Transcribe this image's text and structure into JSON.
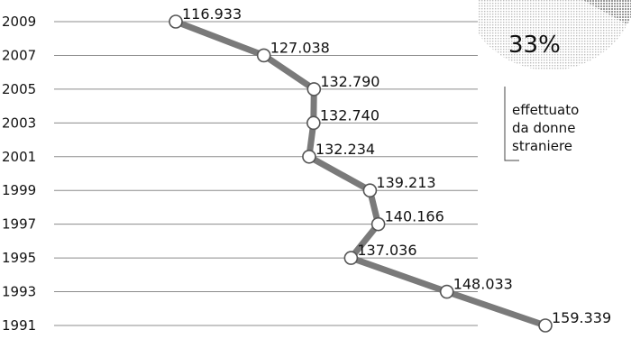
{
  "chart_data": {
    "type": "line",
    "orientation": "horizontal",
    "categories": [
      "1991",
      "1993",
      "1995",
      "1997",
      "1999",
      "2001",
      "2003",
      "2005",
      "2007",
      "2009"
    ],
    "values": [
      159339,
      148033,
      137036,
      140166,
      139213,
      132234,
      132740,
      132790,
      127038,
      116933
    ],
    "value_labels": [
      "159.339",
      "148.033",
      "137.036",
      "140.166",
      "139.213",
      "132.234",
      "132.740",
      "132.790",
      "127.038",
      "116.933"
    ],
    "xlim": [
      116933,
      159339
    ],
    "grid": true,
    "line_color": "#7a7a7a",
    "marker_fill": "#ffffff"
  },
  "inset": {
    "percent": "33%",
    "note_lines": [
      "effettuato",
      "da donne",
      "straniere"
    ],
    "share": 0.33,
    "color": "#bdbdbd"
  }
}
